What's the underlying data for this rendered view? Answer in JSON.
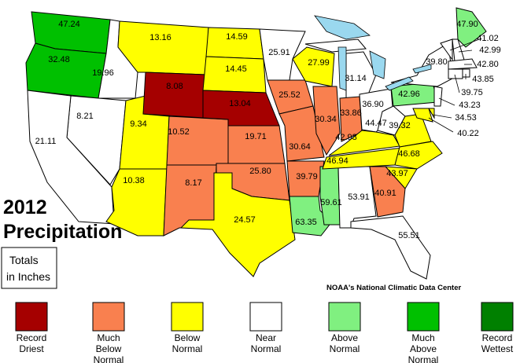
{
  "title": [
    "2012",
    "Precipitation"
  ],
  "note": [
    "Totals",
    "in Inches"
  ],
  "source": "NOAA's National Climatic Data Center",
  "legend": [
    {
      "label": [
        "Record",
        "Driest"
      ],
      "color": "#a50000"
    },
    {
      "label": [
        "Much",
        "Below",
        "Normal"
      ],
      "color": "#f9804f"
    },
    {
      "label": [
        "Below",
        "Normal"
      ],
      "color": "#ffff00"
    },
    {
      "label": [
        "Near",
        "Normal"
      ],
      "color": "#ffffff"
    },
    {
      "label": [
        "Above",
        "Normal"
      ],
      "color": "#80f080"
    },
    {
      "label": [
        "Much",
        "Above",
        "Normal"
      ],
      "color": "#00c000"
    },
    {
      "label": [
        "Record",
        "Wettest"
      ],
      "color": "#008000"
    }
  ],
  "states": [
    {
      "value": "47.24",
      "class": 5
    },
    {
      "value": "32.48",
      "class": 5
    },
    {
      "value": "19.96",
      "class": 3
    },
    {
      "value": "8.21",
      "class": 3
    },
    {
      "value": "21.11",
      "class": 3
    },
    {
      "value": "9.34",
      "class": 2
    },
    {
      "value": "10.38",
      "class": 2
    },
    {
      "value": "13.16",
      "class": 2
    },
    {
      "value": "8.08",
      "class": 0
    },
    {
      "value": "10.52",
      "class": 1
    },
    {
      "value": "8.17",
      "class": 1
    },
    {
      "value": "14.59",
      "class": 2
    },
    {
      "value": "14.45",
      "class": 2
    },
    {
      "value": "13.04",
      "class": 0
    },
    {
      "value": "19.71",
      "class": 1
    },
    {
      "value": "25.80",
      "class": 1
    },
    {
      "value": "24.57",
      "class": 2
    },
    {
      "value": "25.91",
      "class": 3
    },
    {
      "value": "25.52",
      "class": 1
    },
    {
      "value": "30.64",
      "class": 1
    },
    {
      "value": "39.79",
      "class": 1
    },
    {
      "value": "63.35",
      "class": 4
    },
    {
      "value": "27.99",
      "class": 2
    },
    {
      "value": "31.14",
      "class": 3
    },
    {
      "value": "30.34",
      "class": 1
    },
    {
      "value": "33.86",
      "class": 1
    },
    {
      "value": "36.90",
      "class": 3
    },
    {
      "value": "59.61",
      "class": 4
    },
    {
      "value": "53.91",
      "class": 3
    },
    {
      "value": "46.94",
      "class": 2
    },
    {
      "value": "42.98",
      "class": 2
    },
    {
      "value": "44.47",
      "class": 3
    },
    {
      "value": "39.32",
      "class": 2
    },
    {
      "value": "46.68",
      "class": 2
    },
    {
      "value": "43.97",
      "class": 2
    },
    {
      "value": "40.91",
      "class": 1
    },
    {
      "value": "55.51",
      "class": 3
    },
    {
      "value": "42.96",
      "class": 4
    },
    {
      "value": "39.80",
      "class": 3
    },
    {
      "value": "47.90",
      "class": 4
    },
    {
      "value": "41.02",
      "class": 3
    },
    {
      "value": "42.99",
      "class": 3
    },
    {
      "value": "42.80",
      "class": 3
    },
    {
      "value": "43.85",
      "class": 3
    },
    {
      "value": "39.75",
      "class": 3
    },
    {
      "value": "43.23",
      "class": 3
    },
    {
      "value": "34.53",
      "class": 2
    },
    {
      "value": "40.22",
      "class": 2
    }
  ]
}
